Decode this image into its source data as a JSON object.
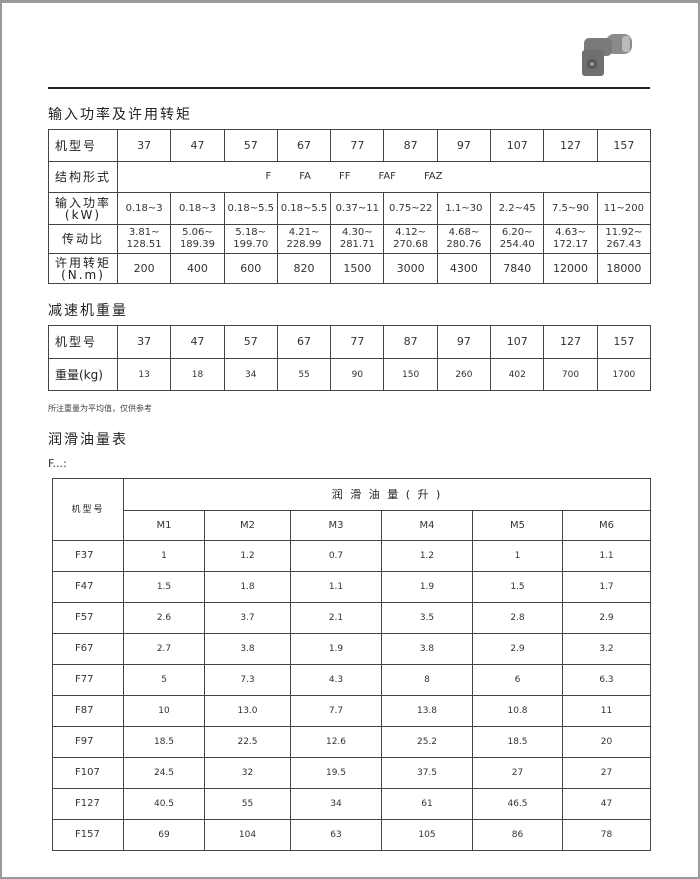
{
  "header": {
    "product_image": "gear-reducer-icon"
  },
  "section1": {
    "title": "输入功率及许用转矩",
    "model_label": "机型号",
    "models": [
      "37",
      "47",
      "57",
      "67",
      "77",
      "87",
      "97",
      "107",
      "127",
      "157"
    ],
    "structure_label": "结构形式",
    "structures": [
      "F",
      "FA",
      "FF",
      "FAF",
      "FAZ"
    ],
    "power_label": "输入功率",
    "power_unit": "(kW)",
    "power": [
      "0.18~3",
      "0.18~3",
      "0.18~5.5",
      "0.18~5.5",
      "0.37~11",
      "0.75~22",
      "1.1~30",
      "2.2~45",
      "7.5~90",
      "11~200"
    ],
    "ratio_label": "传动比",
    "ratio": [
      [
        "3.81~",
        "128.51"
      ],
      [
        "5.06~",
        "189.39"
      ],
      [
        "5.18~",
        "199.70"
      ],
      [
        "4.21~",
        "228.99"
      ],
      [
        "4.30~",
        "281.71"
      ],
      [
        "4.12~",
        "270.68"
      ],
      [
        "4.68~",
        "280.76"
      ],
      [
        "6.20~",
        "254.40"
      ],
      [
        "4.63~",
        "172.17"
      ],
      [
        "11.92~",
        "267.43"
      ]
    ],
    "torque_label": "许用转矩",
    "torque_unit": "(N.m)",
    "torque": [
      "200",
      "400",
      "600",
      "820",
      "1500",
      "3000",
      "4300",
      "7840",
      "12000",
      "18000"
    ]
  },
  "section2": {
    "title": "减速机重量",
    "model_label": "机型号",
    "models": [
      "37",
      "47",
      "57",
      "67",
      "77",
      "87",
      "97",
      "107",
      "127",
      "157"
    ],
    "weight_label": "重量(kg)",
    "weights": [
      "13",
      "18",
      "34",
      "55",
      "90",
      "150",
      "260",
      "402",
      "700",
      "1700"
    ],
    "note": "所注重量为平均值，仅供参考"
  },
  "section3": {
    "title": "润滑油量表",
    "subtitle": "F...:",
    "model_label": "机型号",
    "group_label": "润 滑 油 量 ( 升 )",
    "positions": [
      "M1",
      "M2",
      "M3",
      "M4",
      "M5",
      "M6"
    ],
    "rows": [
      {
        "model": "F37",
        "values": [
          "1",
          "1.2",
          "0.7",
          "1.2",
          "1",
          "1.1"
        ]
      },
      {
        "model": "F47",
        "values": [
          "1.5",
          "1.8",
          "1.1",
          "1.9",
          "1.5",
          "1.7"
        ]
      },
      {
        "model": "F57",
        "values": [
          "2.6",
          "3.7",
          "2.1",
          "3.5",
          "2.8",
          "2.9"
        ]
      },
      {
        "model": "F67",
        "values": [
          "2.7",
          "3.8",
          "1.9",
          "3.8",
          "2.9",
          "3.2"
        ]
      },
      {
        "model": "F77",
        "values": [
          "5",
          "7.3",
          "4.3",
          "8",
          "6",
          "6.3"
        ]
      },
      {
        "model": "F87",
        "values": [
          "10",
          "13.0",
          "7.7",
          "13.8",
          "10.8",
          "11"
        ]
      },
      {
        "model": "F97",
        "values": [
          "18.5",
          "22.5",
          "12.6",
          "25.2",
          "18.5",
          "20"
        ]
      },
      {
        "model": "F107",
        "values": [
          "24.5",
          "32",
          "19.5",
          "37.5",
          "27",
          "27"
        ]
      },
      {
        "model": "F127",
        "values": [
          "40.5",
          "55",
          "34",
          "61",
          "46.5",
          "47"
        ]
      },
      {
        "model": "F157",
        "values": [
          "69",
          "104",
          "63",
          "105",
          "86",
          "78"
        ]
      }
    ]
  }
}
